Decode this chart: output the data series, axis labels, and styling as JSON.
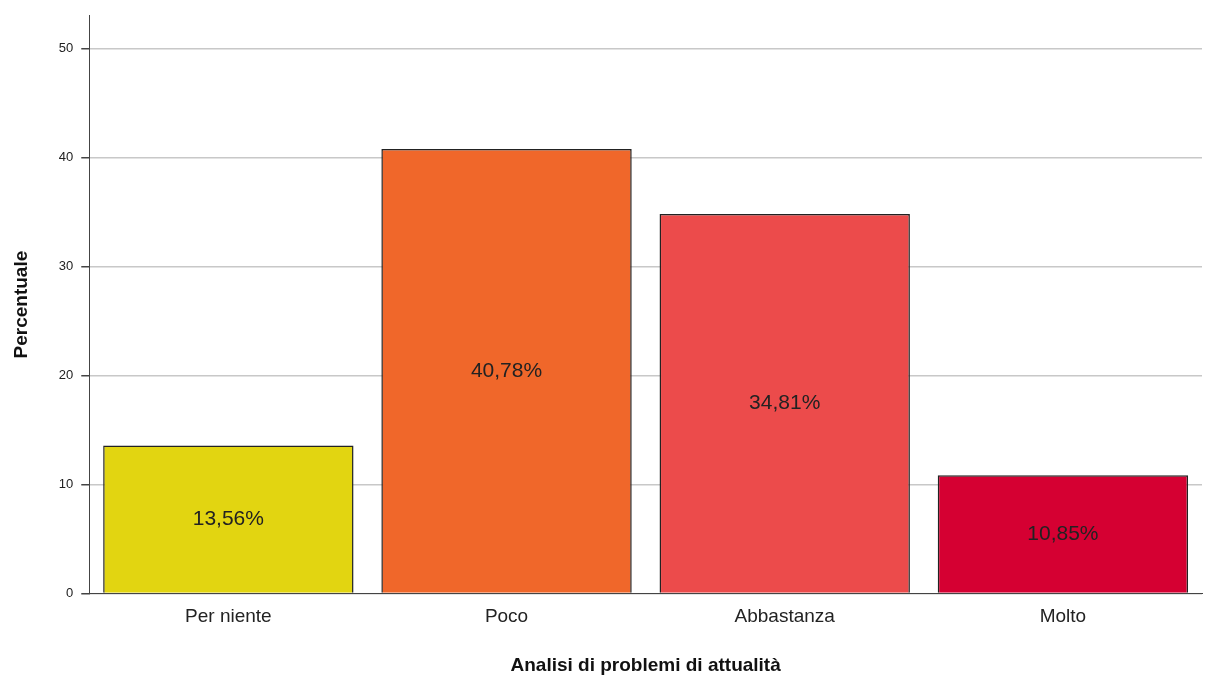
{
  "chart_data": {
    "type": "bar",
    "xlabel": "Analisi di problemi di attualità",
    "ylabel": "Percentuale",
    "categories": [
      "Per niente",
      "Poco",
      "Abbastanza",
      "Molto"
    ],
    "values": [
      13.56,
      40.78,
      34.81,
      10.85
    ],
    "colors": [
      "#e2d511",
      "#f0672a",
      "#ec4b4b",
      "#d50032"
    ],
    "value_labels": [
      "13,56%",
      "40,78%",
      "34,81%",
      "10,85%"
    ],
    "ylim": [
      0,
      53
    ],
    "yticks": [
      0,
      10,
      20,
      30,
      40,
      50
    ],
    "grid": "y",
    "legend": false
  }
}
